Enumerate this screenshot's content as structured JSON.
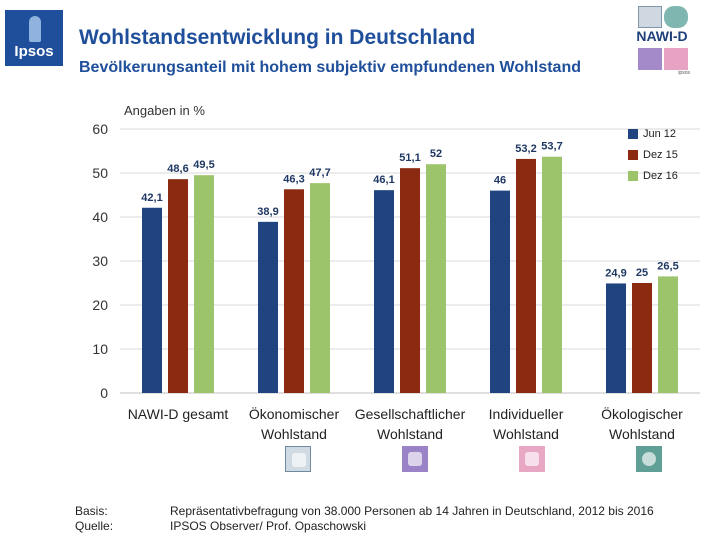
{
  "header": {
    "title": "Wohlstandsentwicklung in Deutschland",
    "subtitle": "Bevölkerungsanteil mit hohem subjektiv empfundenen Wohlstand",
    "brand_logo_text": "Ipsos",
    "nawi_logo_text": "NAWI-D",
    "nawi_logo_small": "ipsos"
  },
  "chart_data": {
    "type": "bar",
    "title": "Bevölkerungsanteil mit hohem subjektiv empfundenen Wohlstand",
    "ylabel": "Angaben in %",
    "xlabel": "",
    "ylim": [
      0,
      60
    ],
    "yticks": [
      0,
      10,
      20,
      30,
      40,
      50,
      60
    ],
    "ytick_labels": [
      "0",
      "10",
      "20",
      "30",
      "40",
      "50",
      "60"
    ],
    "grid": true,
    "legend_position": "top-right",
    "categories": [
      [
        "NAWI-D gesamt"
      ],
      [
        "Ökonomischer",
        "Wohlstand"
      ],
      [
        "Gesellschaftlicher",
        "Wohlstand"
      ],
      [
        "Individueller",
        "Wohlstand"
      ],
      [
        "Ökologischer",
        "Wohlstand"
      ]
    ],
    "series": [
      {
        "name": "Jun 12",
        "color": "#1f4480",
        "values": [
          42.1,
          38.9,
          46.1,
          46,
          24.9
        ],
        "labels": [
          "42,1",
          "38,9",
          "46,1",
          "46",
          "24,9"
        ]
      },
      {
        "name": "Dez 15",
        "color": "#8b2a10",
        "values": [
          48.6,
          46.3,
          51.1,
          53.2,
          25
        ],
        "labels": [
          "48,6",
          "46,3",
          "51,1",
          "53,2",
          "25"
        ]
      },
      {
        "name": "Dez 16",
        "color": "#9cc46a",
        "values": [
          49.5,
          47.7,
          52,
          53.7,
          26.5
        ],
        "labels": [
          "49,5",
          "47,7",
          "52",
          "53,7",
          "26,5"
        ]
      }
    ]
  },
  "footer": {
    "basis_label": "Basis:",
    "basis_text": "Repräsentativbefragung von 38.000 Personen ab 14 Jahren in Deutschland, 2012 bis 2016",
    "source_label": "Quelle:",
    "source_text": "IPSOS Observer/ Prof. Opaschowski"
  },
  "colors": {
    "title": "#1f4f9a",
    "grid": "#d9d9d9",
    "label_text": "#1f3864"
  }
}
